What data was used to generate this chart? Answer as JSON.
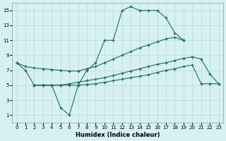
{
  "xlabel": "Humidex (Indice chaleur)",
  "bg_color": "#d7f0f0",
  "grid_color": "#b8d8d8",
  "line_color": "#1a6b6b",
  "xlim": [
    -0.5,
    23.5
  ],
  "ylim": [
    0,
    16
  ],
  "xticks": [
    0,
    1,
    2,
    3,
    4,
    5,
    6,
    7,
    8,
    9,
    10,
    11,
    12,
    13,
    14,
    15,
    16,
    17,
    18,
    19,
    20,
    21,
    22,
    23
  ],
  "yticks": [
    1,
    3,
    5,
    7,
    9,
    11,
    13,
    15
  ],
  "line1_x": [
    0,
    1,
    2,
    3,
    4,
    5,
    6,
    7,
    8,
    9,
    10,
    11,
    12,
    13,
    14,
    15,
    16,
    17,
    18,
    19
  ],
  "line1_y": [
    8,
    7,
    5,
    5,
    5,
    2,
    1,
    5,
    7,
    8,
    11,
    11,
    15,
    15.5,
    15,
    15,
    15,
    14,
    12,
    11
  ],
  "line2_x": [
    0,
    1,
    2,
    3,
    4,
    5,
    6,
    7,
    8,
    9,
    10,
    11,
    12,
    13,
    14,
    15,
    16,
    17,
    18,
    19
  ],
  "line2_y": [
    8,
    7.5,
    7.3,
    7.2,
    7.1,
    7.0,
    6.9,
    6.9,
    7.2,
    7.5,
    8.0,
    8.5,
    9.0,
    9.5,
    10.0,
    10.4,
    10.8,
    11.2,
    11.4,
    11.0
  ],
  "line3_x": [
    2,
    3,
    4,
    5,
    6,
    7,
    8,
    9,
    10,
    11,
    12,
    13,
    14,
    15,
    16,
    17,
    18,
    19,
    20,
    21,
    22,
    23
  ],
  "line3_y": [
    5,
    5,
    5,
    5,
    5.2,
    5.4,
    5.6,
    5.8,
    6.0,
    6.3,
    6.6,
    6.9,
    7.2,
    7.5,
    7.8,
    8.0,
    8.3,
    8.6,
    8.8,
    8.5,
    6.5,
    5.2
  ],
  "line4_x": [
    2,
    3,
    4,
    5,
    6,
    7,
    8,
    9,
    10,
    11,
    12,
    13,
    14,
    15,
    16,
    17,
    18,
    19,
    20,
    21,
    22,
    23
  ],
  "line4_y": [
    5,
    5,
    5,
    5,
    5,
    5,
    5.1,
    5.2,
    5.4,
    5.6,
    5.8,
    6.0,
    6.2,
    6.4,
    6.7,
    7.0,
    7.2,
    7.5,
    7.7,
    5.2,
    5.2,
    5.2
  ]
}
